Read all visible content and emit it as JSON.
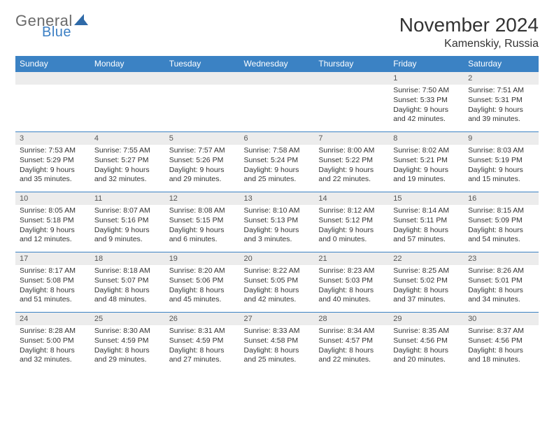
{
  "logo": {
    "word1": "General",
    "word2": "Blue",
    "color_gray": "#6a6a6a",
    "color_blue": "#3b7fc4"
  },
  "title": "November 2024",
  "location": "Kamenskiy, Russia",
  "header_bg": "#3b82c4",
  "header_fg": "#ffffff",
  "daynum_bg": "#ececec",
  "row_border": "#3b82c4",
  "weekdays": [
    "Sunday",
    "Monday",
    "Tuesday",
    "Wednesday",
    "Thursday",
    "Friday",
    "Saturday"
  ],
  "weeks": [
    [
      {
        "n": "",
        "sr": "",
        "ss": "",
        "dl": ""
      },
      {
        "n": "",
        "sr": "",
        "ss": "",
        "dl": ""
      },
      {
        "n": "",
        "sr": "",
        "ss": "",
        "dl": ""
      },
      {
        "n": "",
        "sr": "",
        "ss": "",
        "dl": ""
      },
      {
        "n": "",
        "sr": "",
        "ss": "",
        "dl": ""
      },
      {
        "n": "1",
        "sr": "Sunrise: 7:50 AM",
        "ss": "Sunset: 5:33 PM",
        "dl": "Daylight: 9 hours and 42 minutes."
      },
      {
        "n": "2",
        "sr": "Sunrise: 7:51 AM",
        "ss": "Sunset: 5:31 PM",
        "dl": "Daylight: 9 hours and 39 minutes."
      }
    ],
    [
      {
        "n": "3",
        "sr": "Sunrise: 7:53 AM",
        "ss": "Sunset: 5:29 PM",
        "dl": "Daylight: 9 hours and 35 minutes."
      },
      {
        "n": "4",
        "sr": "Sunrise: 7:55 AM",
        "ss": "Sunset: 5:27 PM",
        "dl": "Daylight: 9 hours and 32 minutes."
      },
      {
        "n": "5",
        "sr": "Sunrise: 7:57 AM",
        "ss": "Sunset: 5:26 PM",
        "dl": "Daylight: 9 hours and 29 minutes."
      },
      {
        "n": "6",
        "sr": "Sunrise: 7:58 AM",
        "ss": "Sunset: 5:24 PM",
        "dl": "Daylight: 9 hours and 25 minutes."
      },
      {
        "n": "7",
        "sr": "Sunrise: 8:00 AM",
        "ss": "Sunset: 5:22 PM",
        "dl": "Daylight: 9 hours and 22 minutes."
      },
      {
        "n": "8",
        "sr": "Sunrise: 8:02 AM",
        "ss": "Sunset: 5:21 PM",
        "dl": "Daylight: 9 hours and 19 minutes."
      },
      {
        "n": "9",
        "sr": "Sunrise: 8:03 AM",
        "ss": "Sunset: 5:19 PM",
        "dl": "Daylight: 9 hours and 15 minutes."
      }
    ],
    [
      {
        "n": "10",
        "sr": "Sunrise: 8:05 AM",
        "ss": "Sunset: 5:18 PM",
        "dl": "Daylight: 9 hours and 12 minutes."
      },
      {
        "n": "11",
        "sr": "Sunrise: 8:07 AM",
        "ss": "Sunset: 5:16 PM",
        "dl": "Daylight: 9 hours and 9 minutes."
      },
      {
        "n": "12",
        "sr": "Sunrise: 8:08 AM",
        "ss": "Sunset: 5:15 PM",
        "dl": "Daylight: 9 hours and 6 minutes."
      },
      {
        "n": "13",
        "sr": "Sunrise: 8:10 AM",
        "ss": "Sunset: 5:13 PM",
        "dl": "Daylight: 9 hours and 3 minutes."
      },
      {
        "n": "14",
        "sr": "Sunrise: 8:12 AM",
        "ss": "Sunset: 5:12 PM",
        "dl": "Daylight: 9 hours and 0 minutes."
      },
      {
        "n": "15",
        "sr": "Sunrise: 8:14 AM",
        "ss": "Sunset: 5:11 PM",
        "dl": "Daylight: 8 hours and 57 minutes."
      },
      {
        "n": "16",
        "sr": "Sunrise: 8:15 AM",
        "ss": "Sunset: 5:09 PM",
        "dl": "Daylight: 8 hours and 54 minutes."
      }
    ],
    [
      {
        "n": "17",
        "sr": "Sunrise: 8:17 AM",
        "ss": "Sunset: 5:08 PM",
        "dl": "Daylight: 8 hours and 51 minutes."
      },
      {
        "n": "18",
        "sr": "Sunrise: 8:18 AM",
        "ss": "Sunset: 5:07 PM",
        "dl": "Daylight: 8 hours and 48 minutes."
      },
      {
        "n": "19",
        "sr": "Sunrise: 8:20 AM",
        "ss": "Sunset: 5:06 PM",
        "dl": "Daylight: 8 hours and 45 minutes."
      },
      {
        "n": "20",
        "sr": "Sunrise: 8:22 AM",
        "ss": "Sunset: 5:05 PM",
        "dl": "Daylight: 8 hours and 42 minutes."
      },
      {
        "n": "21",
        "sr": "Sunrise: 8:23 AM",
        "ss": "Sunset: 5:03 PM",
        "dl": "Daylight: 8 hours and 40 minutes."
      },
      {
        "n": "22",
        "sr": "Sunrise: 8:25 AM",
        "ss": "Sunset: 5:02 PM",
        "dl": "Daylight: 8 hours and 37 minutes."
      },
      {
        "n": "23",
        "sr": "Sunrise: 8:26 AM",
        "ss": "Sunset: 5:01 PM",
        "dl": "Daylight: 8 hours and 34 minutes."
      }
    ],
    [
      {
        "n": "24",
        "sr": "Sunrise: 8:28 AM",
        "ss": "Sunset: 5:00 PM",
        "dl": "Daylight: 8 hours and 32 minutes."
      },
      {
        "n": "25",
        "sr": "Sunrise: 8:30 AM",
        "ss": "Sunset: 4:59 PM",
        "dl": "Daylight: 8 hours and 29 minutes."
      },
      {
        "n": "26",
        "sr": "Sunrise: 8:31 AM",
        "ss": "Sunset: 4:59 PM",
        "dl": "Daylight: 8 hours and 27 minutes."
      },
      {
        "n": "27",
        "sr": "Sunrise: 8:33 AM",
        "ss": "Sunset: 4:58 PM",
        "dl": "Daylight: 8 hours and 25 minutes."
      },
      {
        "n": "28",
        "sr": "Sunrise: 8:34 AM",
        "ss": "Sunset: 4:57 PM",
        "dl": "Daylight: 8 hours and 22 minutes."
      },
      {
        "n": "29",
        "sr": "Sunrise: 8:35 AM",
        "ss": "Sunset: 4:56 PM",
        "dl": "Daylight: 8 hours and 20 minutes."
      },
      {
        "n": "30",
        "sr": "Sunrise: 8:37 AM",
        "ss": "Sunset: 4:56 PM",
        "dl": "Daylight: 8 hours and 18 minutes."
      }
    ]
  ]
}
